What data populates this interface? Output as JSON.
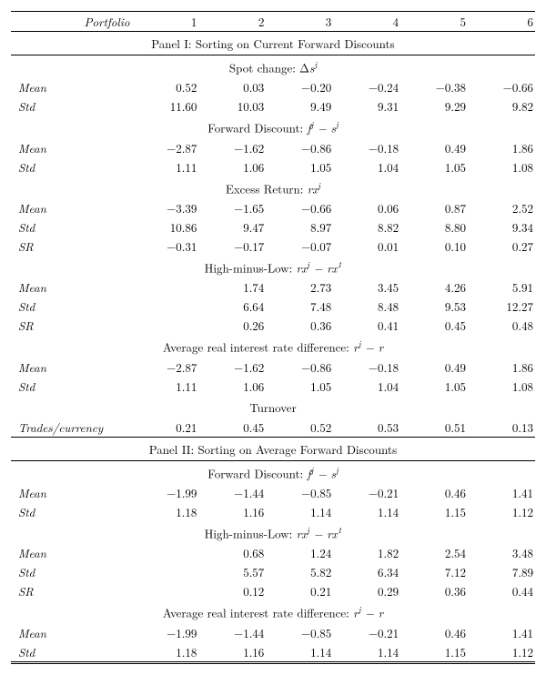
{
  "header": {
    "portfolio_label": "Portfolio",
    "cols": [
      "1",
      "2",
      "3",
      "4",
      "5",
      "6"
    ]
  },
  "panel1_title": "Panel I: Sorting on Current Forward Discounts",
  "panel2_title": "Panel II: Sorting on Average Forward Discounts",
  "labels": {
    "mean": "Mean",
    "std": "Std",
    "sr": "SR",
    "trades": "Trades/currency"
  },
  "sections": {
    "spot": {
      "title_pre": "Spot change: Δ",
      "title_var": "s",
      "sup": "j"
    },
    "fwd": {
      "title_pre": "Forward Discount: ",
      "title_var": "f",
      "sup": "j",
      "tail_pre": " − s",
      "tail_sup": "j"
    },
    "xret": {
      "title_pre": "Excess Return: ",
      "title_var": "rx",
      "sup": "j"
    },
    "hml": {
      "title_pre": "High-minus-Low: ",
      "title_var": "rx",
      "sup": "j",
      "tail_pre": " − rx",
      "tail_sup": "1"
    },
    "rdiff": {
      "title_pre": "Average real interest rate difference: ",
      "title_var": "r",
      "sup": "j",
      "tail_pre": " − r"
    },
    "turn": {
      "title_pre": "Turnover"
    }
  },
  "p1": {
    "spot_mean": [
      "0.52",
      "0.03",
      "−0.20",
      "−0.24",
      "−0.38",
      "−0.66"
    ],
    "spot_std": [
      "11.60",
      "10.03",
      "9.49",
      "9.31",
      "9.29",
      "9.82"
    ],
    "fwd_mean": [
      "−2.87",
      "−1.62",
      "−0.86",
      "−0.18",
      "0.49",
      "1.86"
    ],
    "fwd_std": [
      "1.11",
      "1.06",
      "1.05",
      "1.04",
      "1.05",
      "1.08"
    ],
    "xr_mean": [
      "−3.39",
      "−1.65",
      "−0.66",
      "0.06",
      "0.87",
      "2.52"
    ],
    "xr_std": [
      "10.86",
      "9.47",
      "8.97",
      "8.82",
      "8.80",
      "9.34"
    ],
    "xr_sr": [
      "−0.31",
      "−0.17",
      "−0.07",
      "0.01",
      "0.10",
      "0.27"
    ],
    "hml_mean": [
      "",
      "1.74",
      "2.73",
      "3.45",
      "4.26",
      "5.91"
    ],
    "hml_std": [
      "",
      "6.64",
      "7.48",
      "8.48",
      "9.53",
      "12.27"
    ],
    "hml_sr": [
      "",
      "0.26",
      "0.36",
      "0.41",
      "0.45",
      "0.48"
    ],
    "rd_mean": [
      "−2.87",
      "−1.62",
      "−0.86",
      "−0.18",
      "0.49",
      "1.86"
    ],
    "rd_std": [
      "1.11",
      "1.06",
      "1.05",
      "1.04",
      "1.05",
      "1.08"
    ],
    "turn": [
      "0.21",
      "0.45",
      "0.52",
      "0.53",
      "0.51",
      "0.13"
    ]
  },
  "p2": {
    "fwd_mean": [
      "−1.99",
      "−1.44",
      "−0.85",
      "−0.21",
      "0.46",
      "1.41"
    ],
    "fwd_std": [
      "1.18",
      "1.16",
      "1.14",
      "1.14",
      "1.15",
      "1.12"
    ],
    "hml_mean": [
      "",
      "0.68",
      "1.24",
      "1.82",
      "2.54",
      "3.48"
    ],
    "hml_std": [
      "",
      "5.57",
      "5.82",
      "6.34",
      "7.12",
      "7.89"
    ],
    "hml_sr": [
      "",
      "0.12",
      "0.21",
      "0.29",
      "0.36",
      "0.44"
    ],
    "rd_mean": [
      "−1.99",
      "−1.44",
      "−0.85",
      "−0.21",
      "0.46",
      "1.41"
    ],
    "rd_std": [
      "1.18",
      "1.16",
      "1.14",
      "1.14",
      "1.15",
      "1.12"
    ]
  }
}
